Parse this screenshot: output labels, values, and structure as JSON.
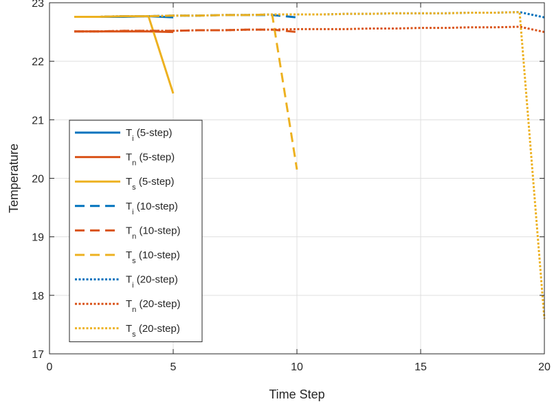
{
  "chart_data": {
    "type": "line",
    "title": "",
    "xlabel": "Time Step",
    "ylabel": "Temperature",
    "xlim": [
      0,
      20
    ],
    "ylim": [
      17,
      23
    ],
    "xticks": [
      0,
      5,
      10,
      15,
      20
    ],
    "yticks": [
      17,
      18,
      19,
      20,
      21,
      22,
      23
    ],
    "grid": true,
    "legend_position": "lower-left",
    "colors": {
      "Ti": "#0072BD",
      "Tn": "#D95319",
      "Ts": "#EDB120"
    },
    "series": [
      {
        "name": "T_i (5-step)",
        "label_main": "T",
        "label_sub": "i",
        "label_rest": " (5-step)",
        "var": "Ti",
        "style": "solid",
        "x": [
          1,
          2,
          3,
          4,
          5
        ],
        "y": [
          22.76,
          22.76,
          22.76,
          22.77,
          22.75
        ]
      },
      {
        "name": "T_n (5-step)",
        "label_main": "T",
        "label_sub": "n",
        "label_rest": " (5-step)",
        "var": "Tn",
        "style": "solid",
        "x": [
          1,
          2,
          3,
          4,
          5
        ],
        "y": [
          22.51,
          22.51,
          22.51,
          22.51,
          22.5
        ]
      },
      {
        "name": "T_s (5-step)",
        "label_main": "T",
        "label_sub": "s",
        "label_rest": " (5-step)",
        "var": "Ts",
        "style": "solid",
        "x": [
          1,
          2,
          3,
          4,
          5
        ],
        "y": [
          22.76,
          22.76,
          22.77,
          22.77,
          21.45
        ]
      },
      {
        "name": "T_i (10-step)",
        "label_main": "T",
        "label_sub": "i",
        "label_rest": " (10-step)",
        "var": "Ti",
        "style": "dashed",
        "x": [
          1,
          2,
          3,
          4,
          5,
          6,
          7,
          8,
          9,
          10
        ],
        "y": [
          22.76,
          22.76,
          22.77,
          22.77,
          22.78,
          22.78,
          22.79,
          22.79,
          22.79,
          22.75
        ]
      },
      {
        "name": "T_n (10-step)",
        "label_main": "T",
        "label_sub": "n",
        "label_rest": " (10-step)",
        "var": "Tn",
        "style": "dashed",
        "x": [
          1,
          2,
          3,
          4,
          5,
          6,
          7,
          8,
          9,
          10
        ],
        "y": [
          22.51,
          22.51,
          22.52,
          22.52,
          22.52,
          22.53,
          22.53,
          22.54,
          22.54,
          22.5
        ]
      },
      {
        "name": "T_s (10-step)",
        "label_main": "T",
        "label_sub": "s",
        "label_rest": " (10-step)",
        "var": "Ts",
        "style": "dashed",
        "x": [
          1,
          2,
          3,
          4,
          5,
          6,
          7,
          8,
          9,
          10
        ],
        "y": [
          22.76,
          22.76,
          22.77,
          22.77,
          22.78,
          22.78,
          22.79,
          22.79,
          22.8,
          20.15
        ]
      },
      {
        "name": "T_i (20-step)",
        "label_main": "T",
        "label_sub": "i",
        "label_rest": " (20-step)",
        "var": "Ti",
        "style": "dotted",
        "x": [
          1,
          2,
          3,
          4,
          5,
          6,
          7,
          8,
          9,
          10,
          11,
          12,
          13,
          14,
          15,
          16,
          17,
          18,
          19,
          20
        ],
        "y": [
          22.76,
          22.76,
          22.77,
          22.77,
          22.78,
          22.78,
          22.79,
          22.79,
          22.8,
          22.8,
          22.8,
          22.81,
          22.81,
          22.82,
          22.82,
          22.82,
          22.83,
          22.83,
          22.84,
          22.75
        ]
      },
      {
        "name": "T_n (20-step)",
        "label_main": "T",
        "label_sub": "n",
        "label_rest": " (20-step)",
        "var": "Tn",
        "style": "dotted",
        "x": [
          1,
          2,
          3,
          4,
          5,
          6,
          7,
          8,
          9,
          10,
          11,
          12,
          13,
          14,
          15,
          16,
          17,
          18,
          19,
          20
        ],
        "y": [
          22.51,
          22.51,
          22.52,
          22.52,
          22.52,
          22.53,
          22.53,
          22.54,
          22.54,
          22.55,
          22.55,
          22.55,
          22.56,
          22.56,
          22.57,
          22.57,
          22.58,
          22.58,
          22.59,
          22.5
        ]
      },
      {
        "name": "T_s (20-step)",
        "label_main": "T",
        "label_sub": "s",
        "label_rest": " (20-step)",
        "var": "Ts",
        "style": "dotted",
        "x": [
          1,
          2,
          3,
          4,
          5,
          6,
          7,
          8,
          9,
          10,
          11,
          12,
          13,
          14,
          15,
          16,
          17,
          18,
          19,
          20
        ],
        "y": [
          22.76,
          22.76,
          22.77,
          22.77,
          22.78,
          22.78,
          22.79,
          22.79,
          22.8,
          22.8,
          22.8,
          22.81,
          22.81,
          22.82,
          22.82,
          22.82,
          22.83,
          22.83,
          22.84,
          17.6
        ]
      }
    ]
  }
}
